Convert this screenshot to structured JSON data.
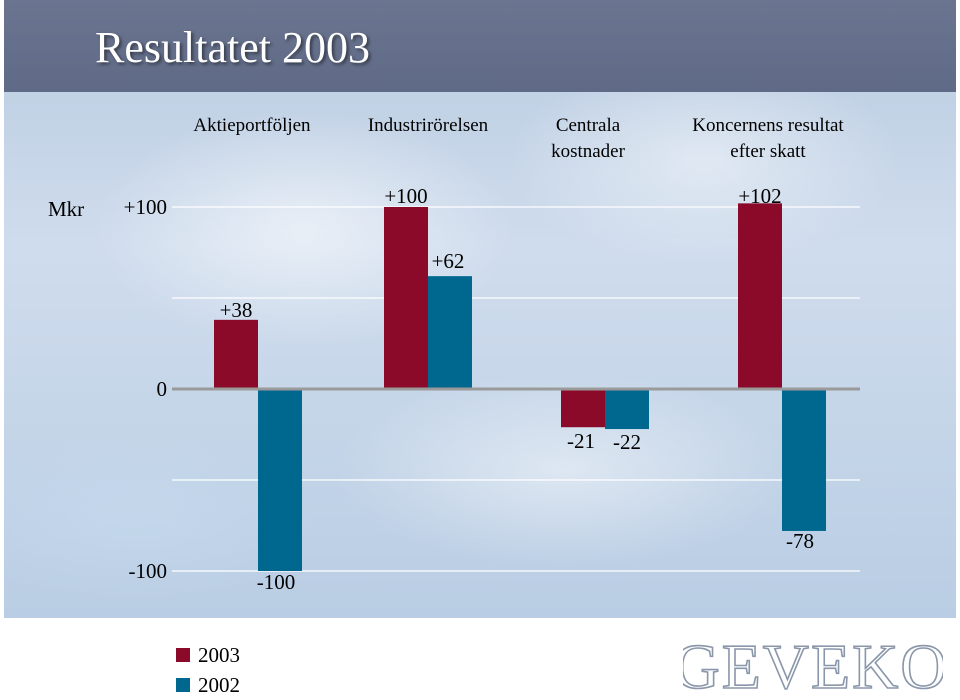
{
  "slide": {
    "title": "Resultatet 2003"
  },
  "logo": {
    "text": "GEVEKO"
  },
  "colors": {
    "series_2003": "#8b0a2a",
    "series_2002": "#00678f",
    "gridline": "#ffffff",
    "zero_line": "#9a9a9a"
  },
  "chart_data": {
    "type": "bar",
    "categories": [
      "Aktieportföljen",
      "Industrirörelsen",
      "Centrala\nkostnader",
      "Koncernens resultat\nefter skatt"
    ],
    "series": [
      {
        "name": "2003",
        "values": [
          38,
          100,
          -21,
          102
        ],
        "labels": [
          "+38",
          "+100",
          "-21",
          "+102"
        ]
      },
      {
        "name": "2002",
        "values": [
          -100,
          62,
          -22,
          -78
        ],
        "labels": [
          "-100",
          "+62",
          "-22",
          "-78"
        ]
      }
    ],
    "ylabel": "Mkr",
    "yticks": [
      100,
      0,
      -100
    ],
    "ytick_labels": [
      "+100",
      "0",
      "-100"
    ],
    "ylim": [
      -100,
      102
    ],
    "grid": true,
    "legend": "bottom-left"
  }
}
